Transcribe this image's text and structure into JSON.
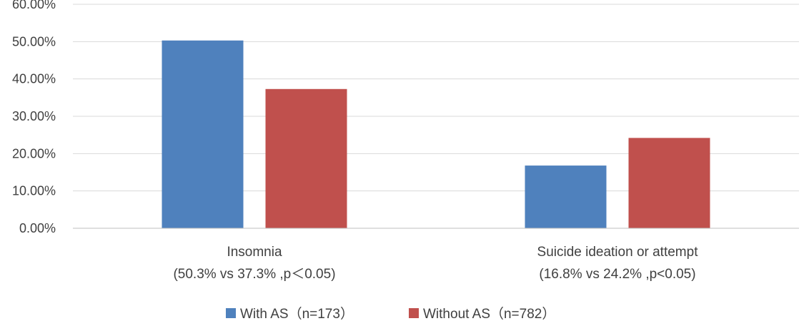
{
  "chart_data": {
    "type": "bar",
    "categories": [
      {
        "name": "Insomnia",
        "detail": "(50.3% vs 37.3% ,p＜0.05)"
      },
      {
        "name": "Suicide ideation or attempt",
        "detail": "(16.8% vs 24.2% ,p<0.05)"
      }
    ],
    "series": [
      {
        "name": "With AS（n=173）",
        "color": "#4f81bd",
        "values": [
          50.3,
          16.8
        ]
      },
      {
        "name": "Without AS（n=782）",
        "color": "#c0504d",
        "values": [
          37.3,
          24.2
        ]
      }
    ],
    "title": "",
    "xlabel": "",
    "ylabel": "",
    "ylim": [
      0,
      60
    ],
    "yticks": [
      "0.00%",
      "10.00%",
      "20.00%",
      "30.00%",
      "40.00%",
      "50.00%",
      "60.00%"
    ],
    "ytick_values": [
      0,
      10,
      20,
      30,
      40,
      50,
      60
    ],
    "grid": true,
    "legend_position": "bottom"
  }
}
